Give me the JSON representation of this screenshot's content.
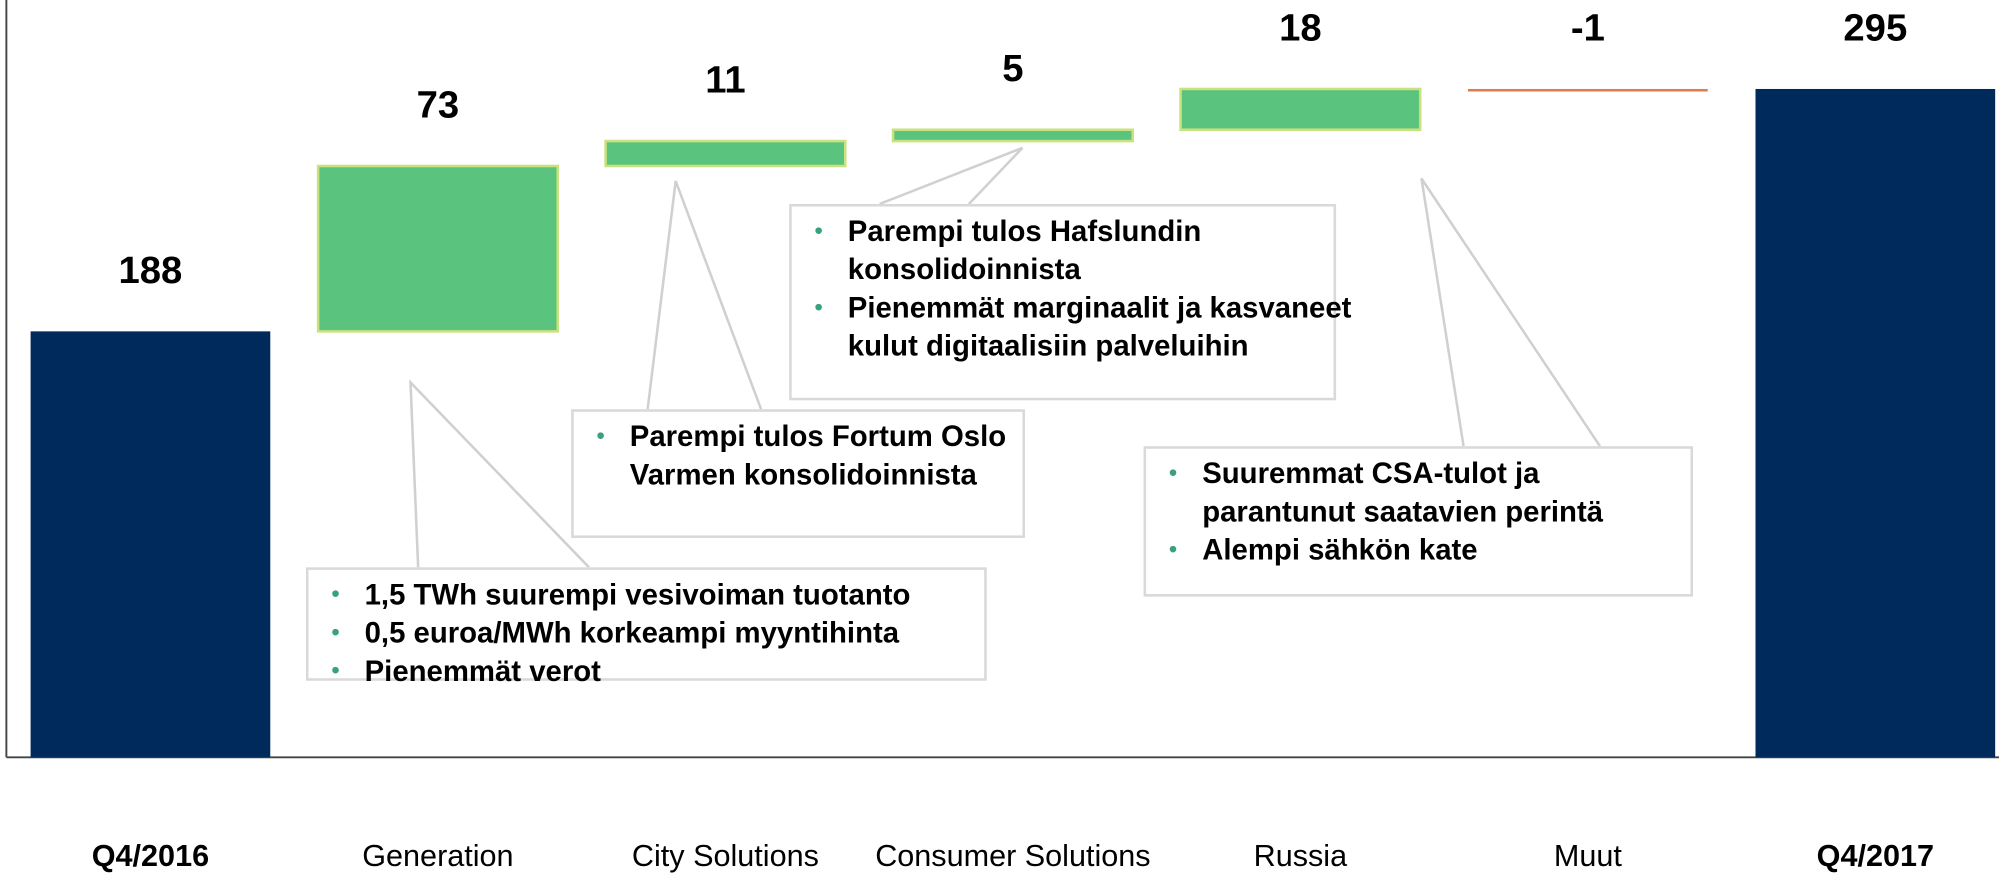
{
  "chart_data": {
    "type": "waterfall",
    "categories": [
      "Q4/2016",
      "Generation",
      "City Solutions",
      "Consumer Solutions",
      "Russia",
      "Muut",
      "Q4/2017"
    ],
    "values": [
      188,
      73,
      11,
      5,
      18,
      -1,
      295
    ],
    "totals": [
      true,
      false,
      false,
      false,
      false,
      false,
      true
    ],
    "colors": {
      "total": "#002a5c",
      "increase": "#5ac47f",
      "decrease": "#e07a50"
    },
    "annotations": [
      {
        "category": 1,
        "bullets": [
          "1,5 TWh suurempi vesivoiman tuotanto",
          "0,5 euroa/MWh korkeampi myyntihinta",
          "Pienemmät verot"
        ]
      },
      {
        "category": 2,
        "bullets": [
          "Parempi tulos Fortum Oslo Varmen konsolidoinnista"
        ]
      },
      {
        "category": 3,
        "bullets": [
          "Parempi tulos Hafslundin konsolidoinnista",
          "Pienemmät marginaalit ja kasvaneet kulut digitaalisiin palveluihin"
        ]
      },
      {
        "category": 4,
        "bullets": [
          "Suuremmat CSA-tulot ja parantunut saatavien perintä",
          "Alempi sähkön kate"
        ]
      }
    ]
  }
}
